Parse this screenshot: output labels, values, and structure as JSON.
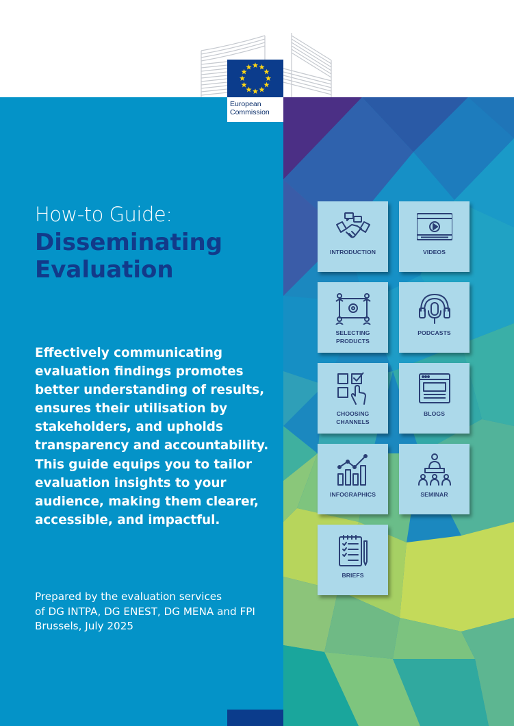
{
  "header": {
    "logo_line1": "European",
    "logo_line2": "Commission"
  },
  "title": {
    "line1": "How-to Guide:",
    "line2": "Disseminating",
    "line3": "Evaluation"
  },
  "intro_lines": [
    "Effectively communicating",
    "evaluation findings promotes",
    "better understanding of results,",
    "ensures their utilisation by",
    "stakeholders, and upholds",
    "transparency and accountability.",
    "This guide equips you to tailor",
    "evaluation insights to your",
    "audience, making them clearer,",
    "accessible, and impactful."
  ],
  "prepared_lines": [
    "Prepared by the evaluation services",
    "of DG INTPA, DG ENEST, DG MENA and FPI",
    "Brussels, July 2025"
  ],
  "tiles": [
    {
      "l1": "INTRODUCTION",
      "l2": "",
      "icon": "handshake-icon"
    },
    {
      "l1": "VIDEOS",
      "l2": "",
      "icon": "video-player-icon"
    },
    {
      "l1": "SELECTING",
      "l2": "PRODUCTS",
      "icon": "product-network-icon"
    },
    {
      "l1": "PODCASTS",
      "l2": "",
      "icon": "podcast-headphones-icon"
    },
    {
      "l1": "CHOOSING",
      "l2": "CHANNELS",
      "icon": "channel-select-icon"
    },
    {
      "l1": "BLOGS",
      "l2": "",
      "icon": "blog-page-icon"
    },
    {
      "l1": "INFOGRAPHICS",
      "l2": "",
      "icon": "bar-chart-icon"
    },
    {
      "l1": "SEMINAR",
      "l2": "",
      "icon": "seminar-presenter-icon"
    },
    {
      "l1": "BRIEFS",
      "l2": "",
      "icon": "brief-checklist-icon"
    }
  ],
  "colors": {
    "left_panel": "#0493c8",
    "title_accent": "#123a8a",
    "tile": "#acd9ea",
    "tile_icon": "#2a3f75",
    "eu_blue": "#0b3c8c",
    "eu_star": "#ffd617"
  }
}
